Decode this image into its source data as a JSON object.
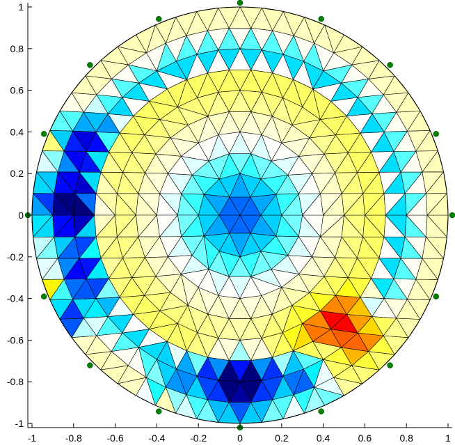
{
  "chart_data": {
    "type": "heatmap",
    "title": "",
    "xlabel": "",
    "ylabel": "",
    "xlim": [
      -1.02,
      1.02
    ],
    "ylim": [
      -1.02,
      1.02
    ],
    "x_ticks": [
      -1,
      -0.8,
      -0.6,
      -0.4,
      -0.2,
      0,
      0.2,
      0.4,
      0.6,
      0.8,
      1
    ],
    "x_tick_labels": [
      "-1",
      "-0.8",
      "-0.6",
      "-0.4",
      "-0.2",
      "0",
      "0.2",
      "0.4",
      "0.6",
      "0.8",
      "1"
    ],
    "y_ticks": [
      1,
      0.8,
      0.6,
      0.4,
      0.2,
      0,
      -0.2,
      -0.4,
      -0.6,
      -0.8,
      -1
    ],
    "y_tick_labels": [
      "1",
      "0.8",
      "0.6",
      "0.4",
      "0.2",
      "0",
      "-0.2",
      "-0.4",
      "-0.6",
      "-0.8",
      "-1"
    ],
    "mesh": {
      "shape": "disk",
      "radius": 1,
      "rings": 10,
      "cells_per_ring_step": 6
    },
    "colormap": [
      "#00007f",
      "#0000ff",
      "#007fff",
      "#00ffff",
      "#ffffff",
      "#ffff7f",
      "#ffff00",
      "#ff7f00",
      "#ff0000"
    ],
    "value_range": [
      -1,
      1
    ],
    "electrodes": {
      "count": 16,
      "radius": 1.02,
      "color": "#007f00",
      "first_angle_deg": 90
    },
    "features": [
      {
        "x": 0,
        "y": 0,
        "sigma": 0.16,
        "amplitude": -0.45
      },
      {
        "x": 0.55,
        "y": -0.55,
        "sigma": 0.09,
        "amplitude": 0.95
      },
      {
        "x": 0.43,
        "y": -0.6,
        "sigma": 0.12,
        "amplitude": 0.45
      },
      {
        "x": -0.85,
        "y": 0.05,
        "sigma": 0.11,
        "amplitude": -1.0
      },
      {
        "x": -0.78,
        "y": 0.35,
        "sigma": 0.09,
        "amplitude": -0.7
      },
      {
        "x": -0.8,
        "y": -0.3,
        "sigma": 0.1,
        "amplitude": -0.6
      },
      {
        "x": -0.82,
        "y": -0.5,
        "sigma": 0.05,
        "amplitude": -0.8
      },
      {
        "x": 0,
        "y": -0.83,
        "sigma": 0.12,
        "amplitude": -1.0
      },
      {
        "x": -0.33,
        "y": -0.87,
        "sigma": 0.07,
        "amplitude": -0.7
      },
      {
        "x": 0.33,
        "y": -0.85,
        "sigma": 0.07,
        "amplitude": -0.75
      },
      {
        "x": -0.95,
        "y": 0.33,
        "sigma": 0.04,
        "amplitude": 0.85
      },
      {
        "x": -0.92,
        "y": -0.33,
        "sigma": 0.04,
        "amplitude": 0.8
      },
      {
        "x": -0.33,
        "y": -0.92,
        "sigma": 0.04,
        "amplitude": 0.9
      },
      {
        "x": 0.32,
        "y": -0.92,
        "sigma": 0.035,
        "amplitude": 0.7
      }
    ],
    "radial_profile": [
      {
        "r": 0.0,
        "v": -0.15
      },
      {
        "r": 0.3,
        "v": 0.0
      },
      {
        "r": 0.45,
        "v": 0.1
      },
      {
        "r": 0.6,
        "v": 0.3
      },
      {
        "r": 0.7,
        "v": 0.3
      },
      {
        "r": 0.78,
        "v": -0.45
      },
      {
        "r": 0.88,
        "v": 0.1
      },
      {
        "r": 1.0,
        "v": 0.15
      }
    ]
  }
}
